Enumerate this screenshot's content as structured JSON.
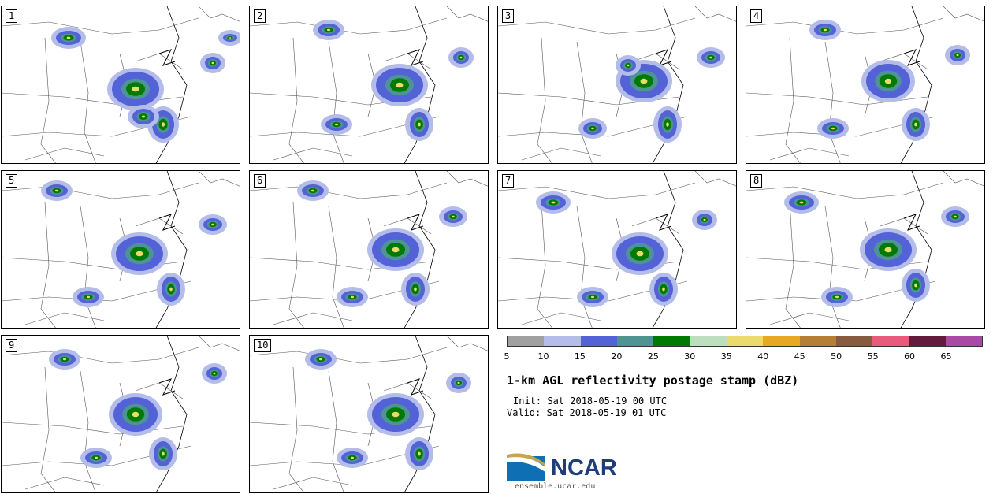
{
  "panels": [
    "1",
    "2",
    "3",
    "4",
    "5",
    "6",
    "7",
    "8",
    "9",
    "10"
  ],
  "colorbar": {
    "ticks": [
      "5",
      "10",
      "15",
      "20",
      "25",
      "30",
      "35",
      "40",
      "45",
      "50",
      "55",
      "60",
      "65"
    ],
    "colors": [
      "#a0a0a0",
      "#b4bde9",
      "#5462d7",
      "#4d9493",
      "#007a00",
      "#bedfbf",
      "#ebdb6d",
      "#e9a822",
      "#b67d34",
      "#875b3f",
      "#e95b7d",
      "#641a3c",
      "#aa4aa4"
    ]
  },
  "title": "1-km AGL reflectivity postage stamp (dBZ)",
  "init": "Init: Sat 2018-05-19 00 UTC",
  "valid": "Valid: Sat 2018-05-19 01 UTC",
  "logo": {
    "text": "NCAR",
    "url": "ensemble.ucar.edu"
  }
}
